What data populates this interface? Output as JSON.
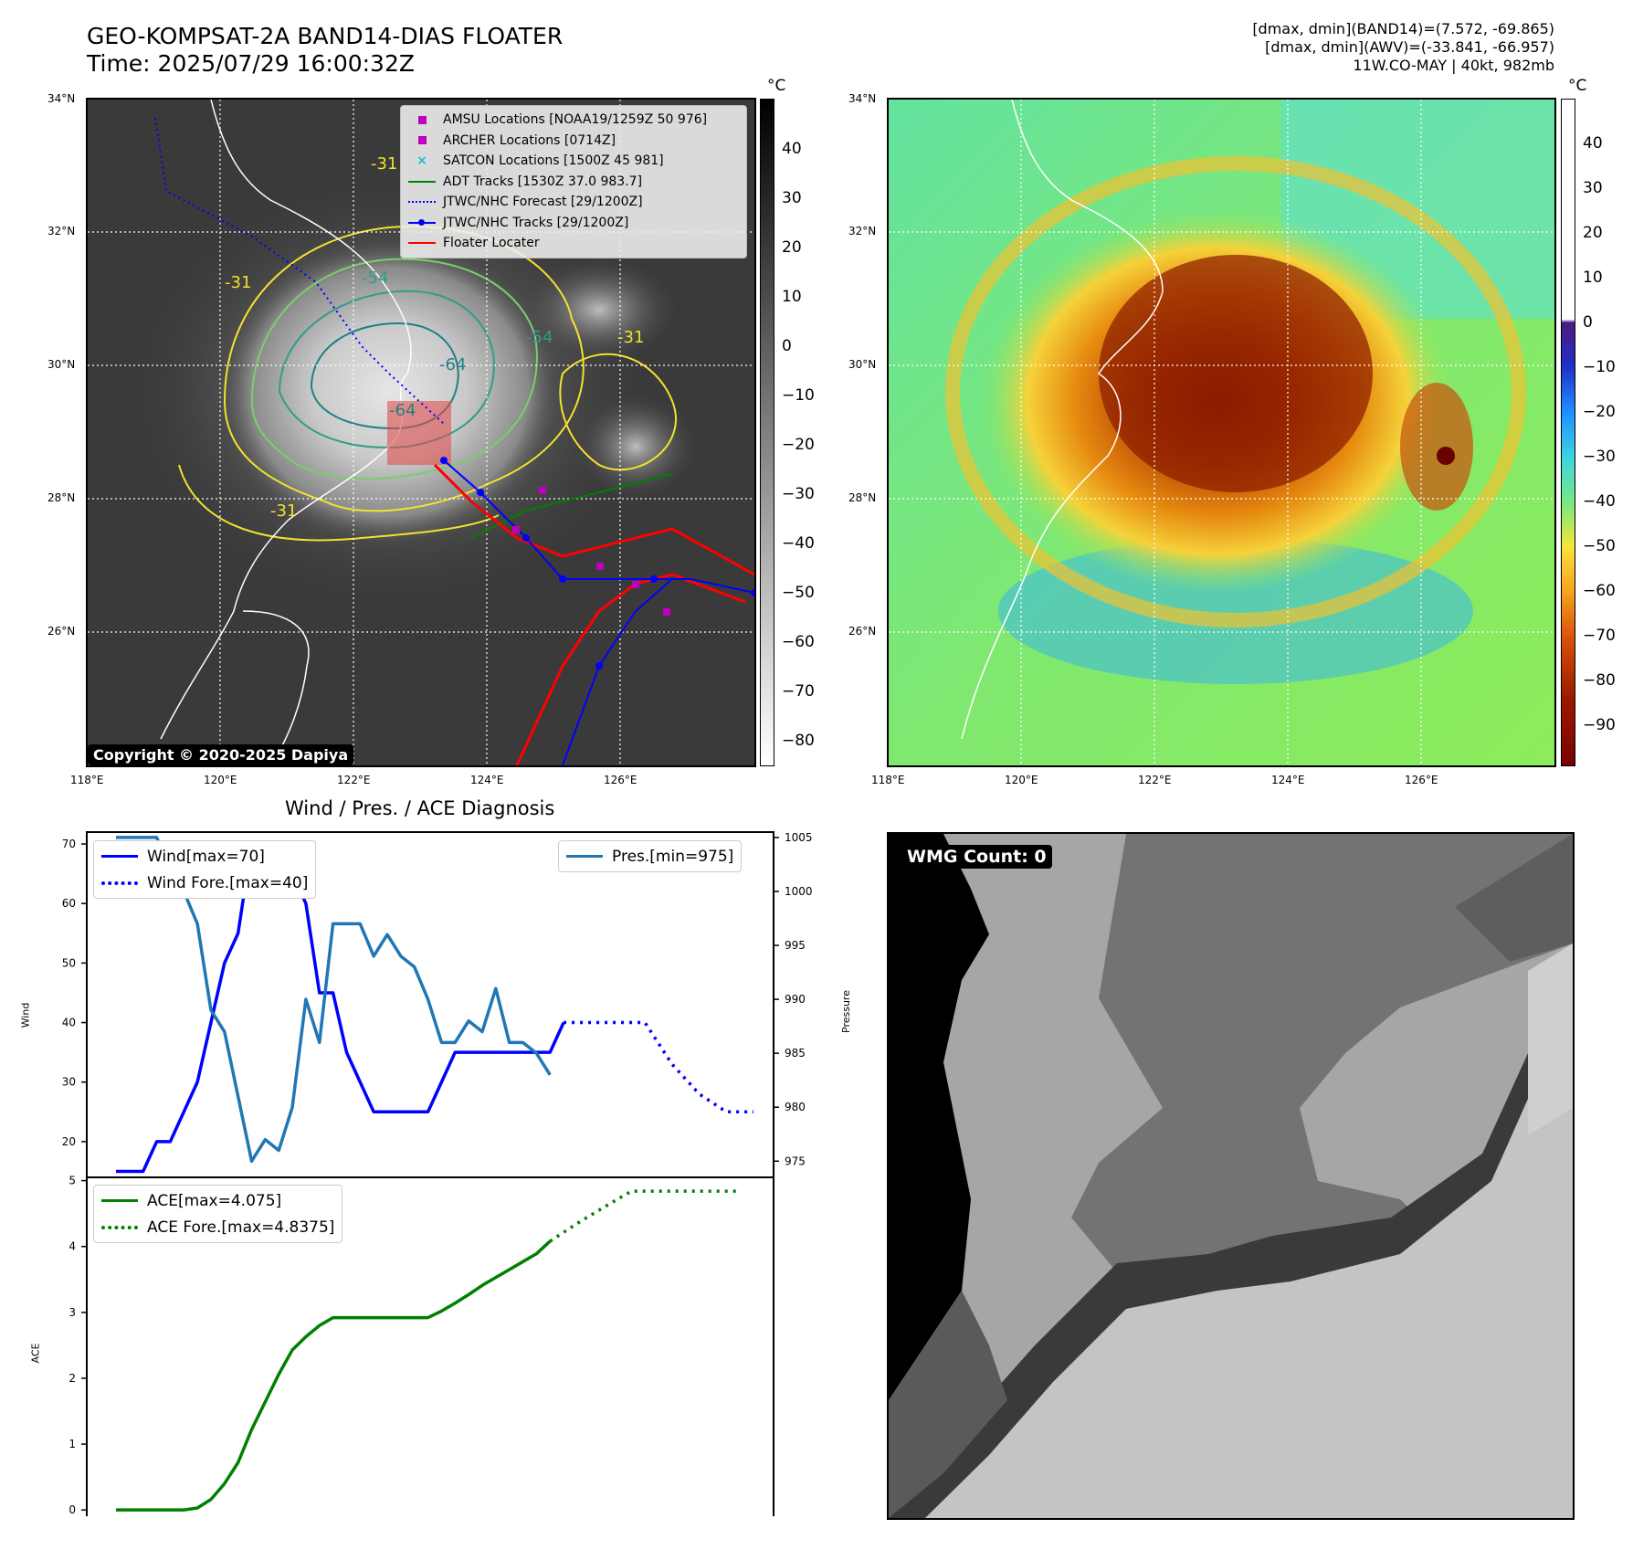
{
  "header": {
    "title_line1": "GEO-KOMPSAT-2A BAND14-DIAS FLOATER",
    "title_line2": "Time: 2025/07/29 16:00:32Z",
    "info_line1": "[dmax, dmin](BAND14)=(7.572, -69.865)",
    "info_line2": "[dmax, dmin](AWV)=(-33.841, -66.957)",
    "info_line3": "11W.CO-MAY | 40kt, 982mb"
  },
  "map_axes": {
    "lat_labels": [
      "34°N",
      "32°N",
      "30°N",
      "28°N",
      "26°N"
    ],
    "lon_labels": [
      "118°E",
      "120°E",
      "122°E",
      "124°E",
      "126°E"
    ]
  },
  "ir_panel": {
    "legend": [
      {
        "label": "AMSU Locations [NOAA19/1259Z 50 976]",
        "symbol": "square",
        "color": "#bf00bf"
      },
      {
        "label": "ARCHER Locations [0714Z]",
        "symbol": "square",
        "color": "#bf00bf"
      },
      {
        "label": "SATCON Locations [1500Z 45 981]",
        "symbol": "x",
        "color": "#17becf"
      },
      {
        "label": "ADT Tracks [1530Z 37.0 983.7]",
        "symbol": "line",
        "color": "#008000"
      },
      {
        "label": "JTWC/NHC Forecast [29/1200Z]",
        "symbol": "dotted",
        "color": "#0000ff"
      },
      {
        "label": "JTWC/NHC Tracks [29/1200Z]",
        "symbol": "line-dot",
        "color": "#0000ff"
      },
      {
        "label": "Floater Locater",
        "symbol": "line",
        "color": "#ff0000"
      }
    ],
    "contour_labels": [
      "-31",
      "-31",
      "-54",
      "-64",
      "-31",
      "-31",
      "-54",
      "-64"
    ],
    "copyright": "Copyright © 2020-2025 Dapiya",
    "colorbar_unit": "°C",
    "colorbar_ticks": [
      "40",
      "30",
      "20",
      "10",
      "0",
      "−10",
      "−20",
      "−30",
      "−40",
      "−50",
      "−60",
      "−70",
      "−80"
    ]
  },
  "awv_panel": {
    "colorbar_unit": "°C",
    "colorbar_ticks": [
      "40",
      "30",
      "20",
      "10",
      "0",
      "−10",
      "−20",
      "−30",
      "−40",
      "−50",
      "−60",
      "−70",
      "−80",
      "−90"
    ]
  },
  "wmg_panel": {
    "badge": "WMG Count: 0"
  },
  "chart_data": [
    {
      "type": "line",
      "title": "Wind / Pres. / ACE Diagnosis",
      "ylabel": "Wind",
      "ylabel_right": "Pressure",
      "ylim": [
        14,
        72
      ],
      "ylim_right": [
        973.5,
        1005.5
      ],
      "yticks": [
        20,
        30,
        40,
        50,
        60,
        70
      ],
      "yticks_right": [
        975,
        980,
        985,
        990,
        995,
        1000,
        1005
      ],
      "series": [
        {
          "name": "Wind[max=70]",
          "axis": "left",
          "style": "solid",
          "color": "#0000ff",
          "values": [
            15,
            15,
            15,
            20,
            20,
            25,
            30,
            40,
            50,
            55,
            70,
            68,
            65,
            65,
            60,
            45,
            45,
            35,
            30,
            25,
            25,
            25,
            25,
            25,
            30,
            35,
            35,
            35,
            35,
            35,
            35,
            35,
            35,
            40
          ]
        },
        {
          "name": "Wind Fore.[max=40]",
          "axis": "left",
          "style": "dotted",
          "color": "#0000ff",
          "x": [
            33,
            35,
            37,
            39,
            41,
            43,
            45,
            47
          ],
          "values": [
            40,
            40,
            40,
            40,
            33,
            28,
            25,
            25
          ]
        },
        {
          "name": "Pres.[min=975]",
          "axis": "right",
          "style": "solid",
          "color": "#1f77b4",
          "values": [
            1005,
            1005,
            1005,
            1005,
            1002,
            1000,
            997,
            989,
            987,
            981,
            975,
            977,
            976,
            980,
            990,
            986,
            997,
            997,
            997,
            994,
            996,
            994,
            993,
            990,
            986,
            986,
            988,
            987,
            991,
            986,
            986,
            985,
            983
          ]
        }
      ],
      "x_axis": "time steps (no tick labels)"
    },
    {
      "type": "line",
      "ylabel": "ACE",
      "ylim": [
        -0.15,
        5.05
      ],
      "yticks": [
        0,
        1,
        2,
        3,
        4,
        5
      ],
      "series": [
        {
          "name": "ACE[max=4.075]",
          "style": "solid",
          "color": "#008000",
          "values": [
            0,
            0,
            0,
            0,
            0,
            0,
            0.03,
            0.16,
            0.4,
            0.72,
            1.22,
            1.64,
            2.06,
            2.43,
            2.63,
            2.8,
            2.92,
            2.92,
            2.92,
            2.92,
            2.92,
            2.92,
            2.92,
            2.92,
            3.02,
            3.14,
            3.27,
            3.41,
            3.53,
            3.65,
            3.77,
            3.89,
            4.08
          ]
        },
        {
          "name": "ACE Fore.[max=4.8375]",
          "style": "dotted",
          "color": "#008000",
          "x": [
            32,
            34,
            36,
            38,
            40,
            42,
            44,
            46
          ],
          "values": [
            4.08,
            4.35,
            4.6,
            4.84,
            4.84,
            4.84,
            4.84,
            4.84
          ]
        }
      ]
    }
  ]
}
